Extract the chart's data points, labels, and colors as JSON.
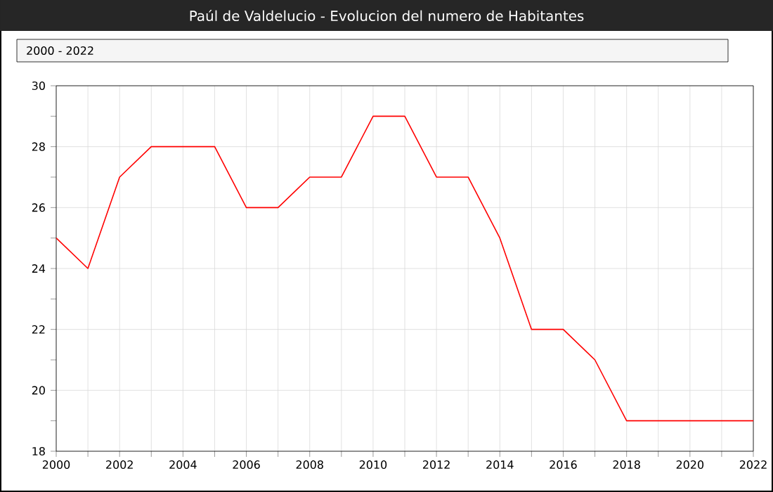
{
  "chart_data": {
    "type": "line",
    "title": "Paúl de Valdelucio - Evolucion del numero de Habitantes",
    "subtitle": "2000 - 2022",
    "x": [
      2000,
      2001,
      2002,
      2003,
      2004,
      2005,
      2006,
      2007,
      2008,
      2009,
      2010,
      2011,
      2012,
      2013,
      2014,
      2015,
      2016,
      2017,
      2018,
      2019,
      2020,
      2021,
      2022
    ],
    "series": [
      {
        "color": "#ff0000",
        "values": [
          25,
          24,
          27,
          28,
          28,
          28,
          26,
          26,
          27,
          27,
          29,
          29,
          27,
          27,
          25,
          22,
          22,
          21,
          19,
          19,
          19,
          19,
          19
        ]
      }
    ],
    "xlim": [
      2000,
      2022
    ],
    "ylim": [
      18,
      30
    ],
    "xticks": [
      2000,
      {
        "value": 2001,
        "label": null
      },
      2002,
      {
        "value": 2003,
        "label": null
      },
      2004,
      {
        "value": 2005,
        "label": null
      },
      2006,
      {
        "value": 2007,
        "label": null
      },
      2008,
      {
        "value": 2009,
        "label": null
      },
      2010,
      {
        "value": 2011,
        "label": null
      },
      2012,
      {
        "value": 2013,
        "label": null
      },
      2014,
      {
        "value": 2015,
        "label": null
      },
      2016,
      {
        "value": 2017,
        "label": null
      },
      2018,
      {
        "value": 2019,
        "label": null
      },
      2020,
      {
        "value": 2021,
        "label": null
      },
      2022
    ],
    "yticks": [
      18,
      {
        "value": 19,
        "label": null
      },
      20,
      {
        "value": 21,
        "label": null
      },
      22,
      {
        "value": 23,
        "label": null
      },
      24,
      {
        "value": 25,
        "label": null
      },
      26,
      {
        "value": 27,
        "label": null
      },
      28,
      {
        "value": 29,
        "label": null
      },
      30
    ],
    "grid": true
  }
}
